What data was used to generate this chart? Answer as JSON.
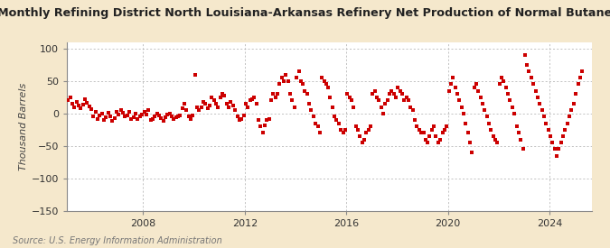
{
  "title": "Monthly Refining District North Louisiana-Arkansas Refinery Net Production of Normal Butane",
  "ylabel": "Thousand Barrels",
  "source": "Source: U.S. Energy Information Administration",
  "bg_color": "#f5e8cc",
  "plot_bg_color": "#ffffff",
  "dot_color": "#cc0000",
  "dot_size": 9,
  "ylim": [
    -150,
    110
  ],
  "yticks": [
    -150,
    -100,
    -50,
    0,
    50,
    100
  ],
  "grid_color": "#aaaaaa",
  "title_fontsize": 9.2,
  "ylabel_fontsize": 8,
  "source_fontsize": 7,
  "tick_fontsize": 8,
  "start_year": 2005,
  "start_month": 1,
  "xtick_years": [
    2008,
    2012,
    2016,
    2020,
    2024
  ],
  "data_values": [
    20,
    25,
    15,
    10,
    18,
    12,
    8,
    14,
    22,
    16,
    11,
    7,
    -5,
    2,
    -8,
    -3,
    0,
    -10,
    -6,
    1,
    -4,
    -12,
    -7,
    3,
    -2,
    5,
    1,
    -5,
    -3,
    2,
    -8,
    -6,
    0,
    -9,
    -4,
    -1,
    2,
    -2,
    5,
    -10,
    -8,
    -5,
    0,
    -3,
    -7,
    -12,
    -6,
    -2,
    0,
    -4,
    -8,
    -6,
    -5,
    -3,
    8,
    15,
    5,
    -5,
    -8,
    -3,
    60,
    10,
    5,
    10,
    18,
    15,
    8,
    12,
    25,
    20,
    15,
    10,
    25,
    30,
    28,
    15,
    10,
    18,
    12,
    5,
    -5,
    -10,
    -8,
    -3,
    15,
    10,
    20,
    22,
    25,
    15,
    -10,
    -20,
    -30,
    -18,
    -10,
    -8,
    20,
    30,
    25,
    30,
    45,
    55,
    50,
    60,
    50,
    30,
    20,
    10,
    55,
    65,
    50,
    45,
    35,
    30,
    15,
    5,
    -5,
    -15,
    -20,
    -30,
    55,
    50,
    45,
    40,
    25,
    10,
    -5,
    -10,
    -15,
    -25,
    -30,
    -25,
    30,
    25,
    20,
    10,
    -20,
    -25,
    -35,
    -45,
    -40,
    -30,
    -25,
    -20,
    30,
    35,
    25,
    20,
    10,
    0,
    15,
    20,
    30,
    35,
    30,
    25,
    40,
    35,
    30,
    20,
    25,
    20,
    10,
    5,
    -10,
    -20,
    -25,
    -30,
    -30,
    -40,
    -45,
    -35,
    -25,
    -20,
    -35,
    -45,
    -40,
    -30,
    -25,
    -20,
    35,
    45,
    55,
    40,
    30,
    20,
    10,
    0,
    -15,
    -30,
    -45,
    -60,
    40,
    45,
    35,
    25,
    15,
    5,
    -5,
    -15,
    -25,
    -35,
    -40,
    -45,
    45,
    55,
    50,
    40,
    30,
    20,
    10,
    0,
    -20,
    -30,
    -40,
    -55,
    90,
    75,
    65,
    55,
    45,
    35,
    25,
    15,
    5,
    -5,
    -15,
    -25,
    -35,
    -45,
    -55,
    -65,
    -55,
    -45,
    -35,
    -25,
    -15,
    -5,
    5,
    15,
    30,
    45,
    55,
    65
  ]
}
